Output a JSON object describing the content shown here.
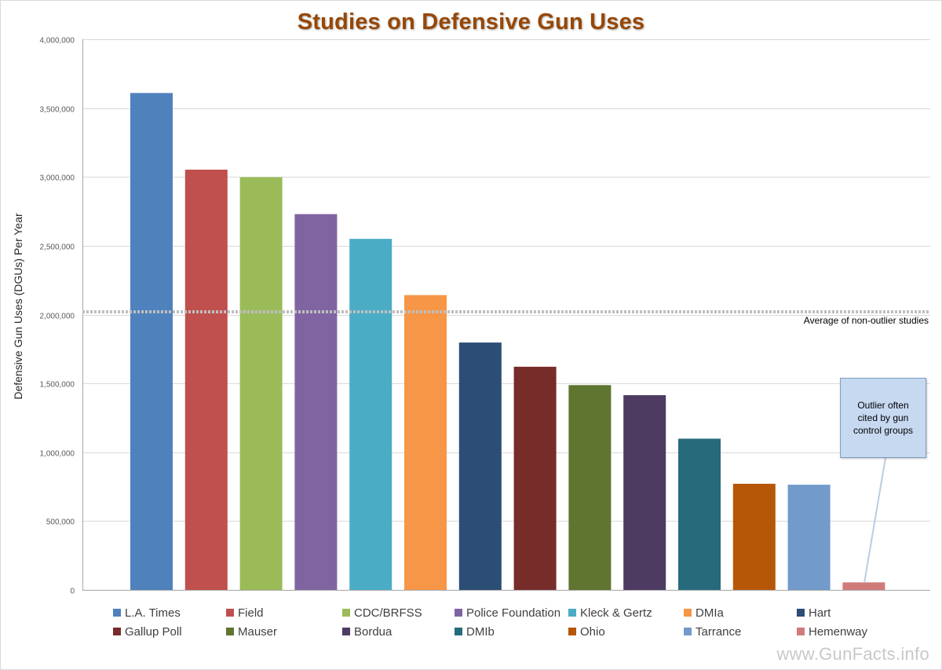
{
  "chart_data": {
    "type": "bar",
    "title": "Studies on Defensive Gun Uses",
    "xlabel": "",
    "ylabel": "Defensive Gun Uses (DGUs) Per Year",
    "ylim": [
      0,
      4000000
    ],
    "yticks": [
      0,
      500000,
      1000000,
      1500000,
      2000000,
      2500000,
      3000000,
      3500000,
      4000000
    ],
    "ytick_labels": [
      "0",
      "500,000",
      "1,000,000",
      "1,500,000",
      "2,000,000",
      "2,500,000",
      "3,000,000",
      "3,500,000",
      "4,000,000"
    ],
    "grid": true,
    "legend_position": "bottom",
    "categories": [
      "L.A. Times",
      "Field",
      "CDC/BRFSS",
      "Police Foundation",
      "Kleck & Gertz",
      "DMIa",
      "Hart",
      "Gallup Poll",
      "Mauser",
      "Bordua",
      "DMIb",
      "Ohio",
      "Tarrance",
      "Hemenway"
    ],
    "values": [
      3609682,
      3052717,
      2998000,
      2730000,
      2549862,
      2141512,
      1797087,
      1621377,
      1487342,
      1414544,
      1098409,
      771043,
      764036,
      55000
    ],
    "colors": [
      "#4f81bd",
      "#c0504d",
      "#9bbb59",
      "#8064a2",
      "#4bacc6",
      "#f79646",
      "#2c4d75",
      "#772c2a",
      "#5f7530",
      "#4d3b62",
      "#276a7c",
      "#b65708",
      "#729aca",
      "#d07b79"
    ],
    "reference_line": {
      "value": 2020000,
      "label": "Average of non-outlier studies"
    },
    "annotation": {
      "text": "Outlier often cited by gun control groups",
      "target": "Hemenway"
    }
  },
  "watermark": "www.GunFacts.info"
}
